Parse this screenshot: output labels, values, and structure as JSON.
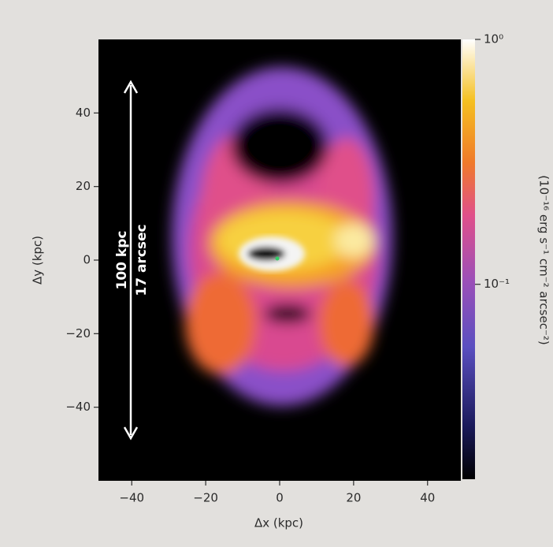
{
  "chart_data": {
    "type": "image",
    "xlabel": "Δx (kpc)",
    "ylabel": "Δy (kpc)",
    "xlim": [
      -49,
      49
    ],
    "ylim": [
      -60,
      60
    ],
    "xticks": [
      {
        "value": -40,
        "label": "−40"
      },
      {
        "value": -20,
        "label": "−20"
      },
      0,
      20,
      40
    ],
    "yticks": [
      {
        "value": -40,
        "label": "−40"
      },
      {
        "value": -20,
        "label": "−20"
      },
      0,
      20,
      40
    ],
    "colorbar": {
      "label": "(10⁻¹⁶ erg s⁻¹ cm⁻² arcsec⁻²)",
      "scale": "log",
      "lim": [
        0.016,
        1
      ],
      "ticks": [
        {
          "value": 1,
          "label": "10⁰"
        },
        {
          "value": 0.1,
          "label": "10⁻¹"
        }
      ]
    },
    "annotations": [
      "100 kpc",
      "17 arcsec"
    ]
  }
}
